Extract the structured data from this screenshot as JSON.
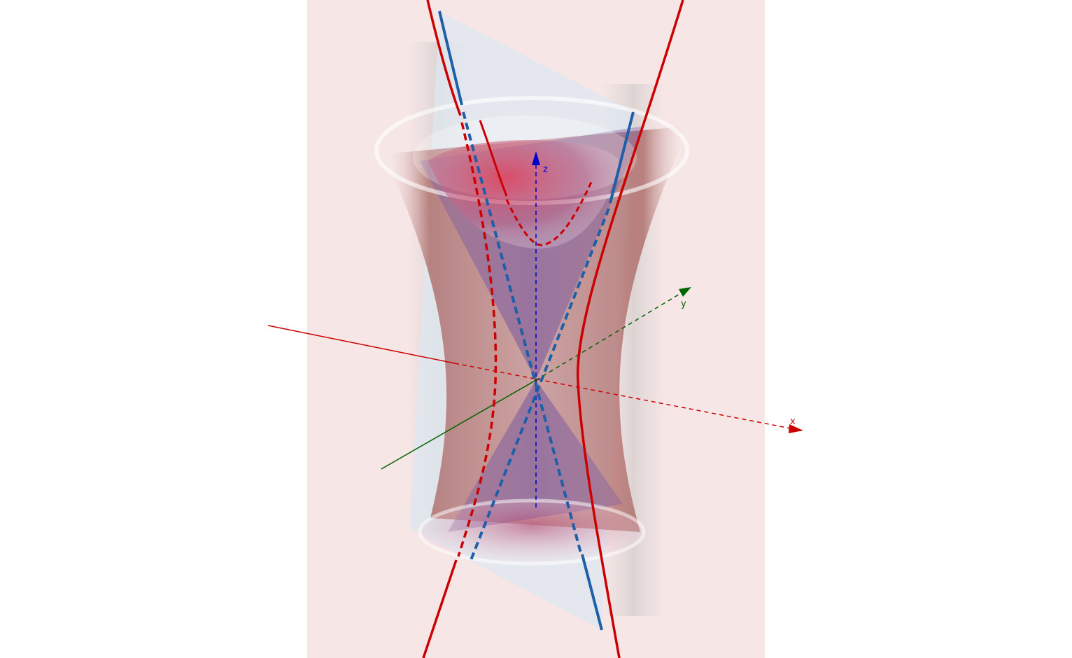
{
  "axes": {
    "x": {
      "label": "x",
      "color": "#cc0000"
    },
    "y": {
      "label": "y",
      "color": "#006400"
    },
    "z": {
      "label": "z",
      "color": "#0000cc"
    }
  },
  "colors": {
    "plane_pink": "#f7e6e6",
    "plane_blue": "#dde8f0",
    "hyperboloid": "#b0605e",
    "cone": "#7a5aa8",
    "hyperbola_curve": "#cc0000",
    "generator_line": "#1f5fa8",
    "parabola_curve": "#cc0000"
  }
}
